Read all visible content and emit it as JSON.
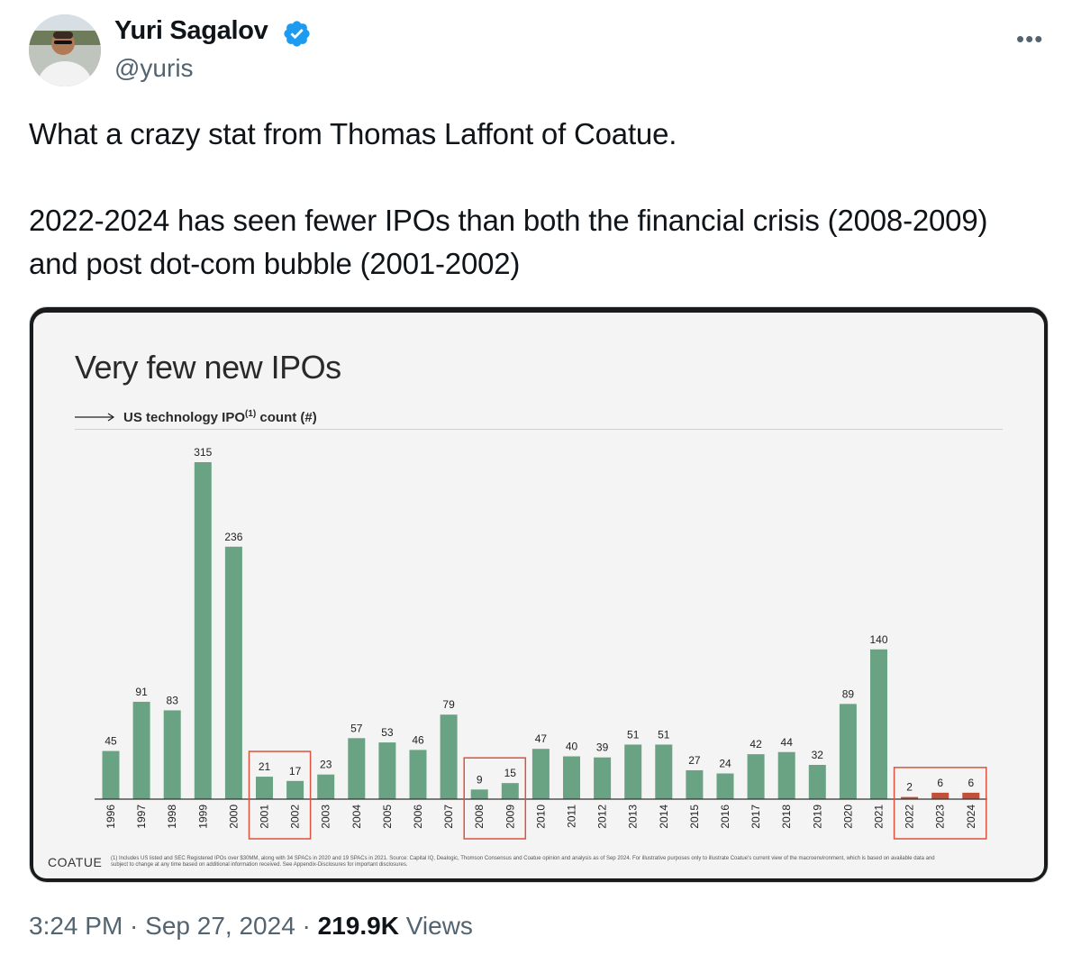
{
  "author": {
    "name": "Yuri Sagalov",
    "handle": "@yuris"
  },
  "menu": {
    "more_label": "•••"
  },
  "tweet": {
    "text": "What a crazy stat from Thomas Laffont of Coatue.\n\n2022-2024 has seen fewer IPOs than both the financial crisis (2008-2009) and post dot-com bubble (2001-2002)"
  },
  "slide": {
    "title": "Very few new IPOs",
    "subtitle_main": "US technology IPO",
    "subtitle_sup": "(1)",
    "subtitle_tail": " count (#)",
    "logo": "COATUE",
    "footnote": "(1) Includes US listed and SEC Registered IPOs over $30MM, along with 34 SPACs in 2020 and 19 SPACs in 2021. Source: Capital IQ, Dealogic, Thomson Consensus and Coatue opinion and analysis as of Sep 2024. For illustrative purposes only to illustrate Coatue's current view of the macroenvironment, which is based on available data and subject to change at any time based on additional information received. See Appendix-Disclosures for important disclosures."
  },
  "chart_data": {
    "type": "bar",
    "categories": [
      "1996",
      "1997",
      "1998",
      "1999",
      "2000",
      "2001",
      "2002",
      "2003",
      "2004",
      "2005",
      "2006",
      "2007",
      "2008",
      "2009",
      "2010",
      "2011",
      "2012",
      "2013",
      "2014",
      "2015",
      "2016",
      "2017",
      "2018",
      "2019",
      "2020",
      "2021",
      "2022",
      "2023",
      "2024"
    ],
    "values": [
      45,
      91,
      83,
      315,
      236,
      21,
      17,
      23,
      57,
      53,
      46,
      79,
      9,
      15,
      47,
      40,
      39,
      51,
      51,
      27,
      24,
      42,
      44,
      32,
      89,
      140,
      2,
      6,
      6
    ],
    "ylim": [
      0,
      315
    ],
    "grid": false,
    "colors": {
      "bar": "#6aa383",
      "bar_highlight": "#c0503a",
      "box": "#d9533e"
    },
    "highlighted_categories": [
      "2022",
      "2023",
      "2024"
    ],
    "boxed_groups": [
      [
        "2001",
        "2002"
      ],
      [
        "2008",
        "2009"
      ],
      [
        "2022",
        "2023",
        "2024"
      ]
    ]
  },
  "meta": {
    "time": "3:24 PM",
    "separator": " · ",
    "date": "Sep 27, 2024",
    "views_count": "219.9K",
    "views_label": " Views"
  }
}
